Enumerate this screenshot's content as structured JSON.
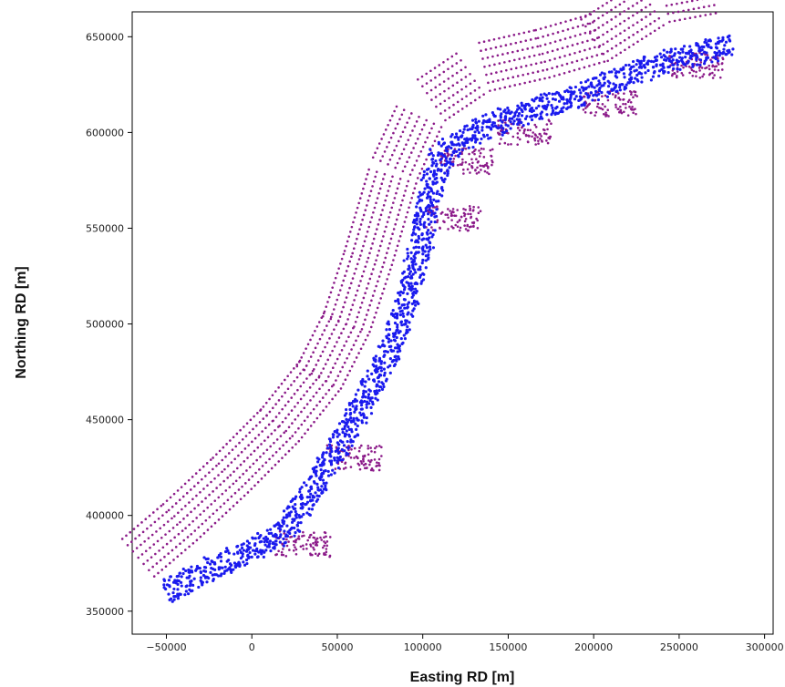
{
  "chart_data": {
    "type": "scatter",
    "title": "",
    "xlabel": "Easting RD [m]",
    "ylabel": "Northing RD [m]",
    "xlim": [
      -70000,
      305000
    ],
    "ylim": [
      338000,
      663000
    ],
    "x_ticks": [
      -50000,
      0,
      50000,
      100000,
      150000,
      200000,
      250000,
      300000
    ],
    "x_tick_labels": [
      "−50000",
      "0",
      "50000",
      "100000",
      "150000",
      "200000",
      "250000",
      "300000"
    ],
    "y_ticks": [
      350000,
      400000,
      450000,
      500000,
      550000,
      600000,
      650000
    ],
    "y_tick_labels": [
      "350000",
      "400000",
      "450000",
      "500000",
      "550000",
      "600000",
      "650000"
    ],
    "grid": false,
    "legend": "none",
    "colors": {
      "background_points": "#8b1a89",
      "foreground_points": "#1a1aee"
    },
    "series": [
      {
        "marker_color": "#8b1a89",
        "description_points": "outer offshore track lines (approximate path)",
        "path": [
          [
            -55000,
            366000
          ],
          [
            -30000,
            385000
          ],
          [
            0,
            410000
          ],
          [
            30000,
            437000
          ],
          [
            55000,
            465000
          ],
          [
            72000,
            495000
          ],
          [
            85000,
            530000
          ],
          [
            100000,
            575000
          ],
          [
            115000,
            604000
          ],
          [
            140000,
            619000
          ],
          [
            175000,
            626000
          ],
          [
            210000,
            635000
          ],
          [
            245000,
            655000
          ],
          [
            275000,
            660000
          ]
        ],
        "near_shore_blocks": [
          [
            30000,
            385000
          ],
          [
            60000,
            430000
          ],
          [
            118000,
            555000
          ],
          [
            125000,
            585000
          ],
          [
            160000,
            600000
          ],
          [
            210000,
            615000
          ],
          [
            260000,
            635000
          ]
        ]
      },
      {
        "marker_color": "#1a1aee",
        "description_points": "dense main coastal band (approximate centreline)",
        "path": [
          [
            -50000,
            360000
          ],
          [
            -25000,
            372000
          ],
          [
            0,
            382000
          ],
          [
            20000,
            392000
          ],
          [
            40000,
            420000
          ],
          [
            60000,
            450000
          ],
          [
            78000,
            480000
          ],
          [
            92000,
            515000
          ],
          [
            100000,
            545000
          ],
          [
            104000,
            570000
          ],
          [
            112000,
            590000
          ],
          [
            135000,
            602000
          ],
          [
            165000,
            612000
          ],
          [
            200000,
            622000
          ],
          [
            235000,
            635000
          ],
          [
            270000,
            643000
          ],
          [
            282000,
            645000
          ]
        ]
      }
    ]
  }
}
